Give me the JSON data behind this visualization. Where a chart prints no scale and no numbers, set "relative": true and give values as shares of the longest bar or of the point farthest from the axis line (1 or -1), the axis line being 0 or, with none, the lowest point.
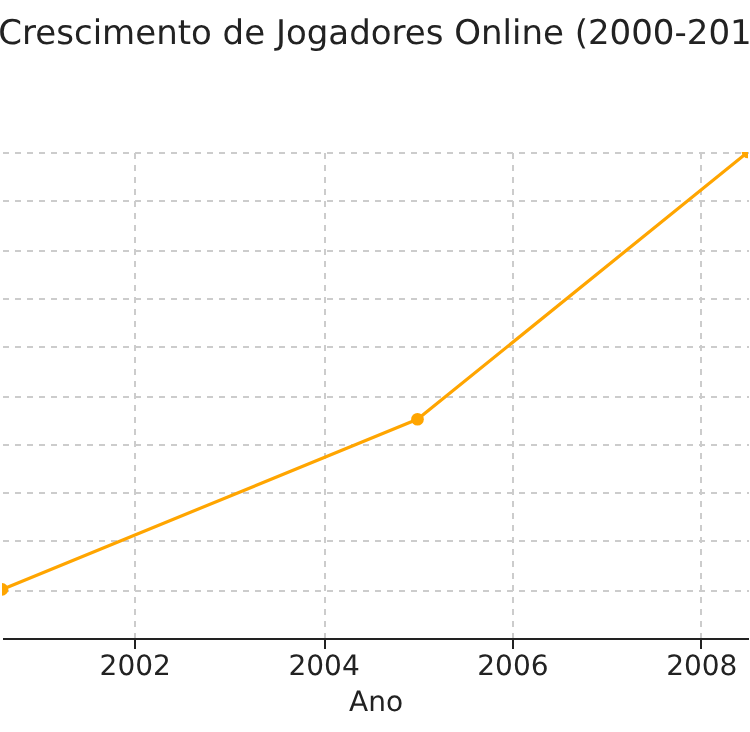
{
  "chart_data": {
    "type": "line",
    "title": "Crescimento de Jogadores Online (2000-201",
    "xlabel": "Ano",
    "relative": true,
    "x": [
      2000.6,
      2005,
      2008.5
    ],
    "series": [
      {
        "color": "#ffa500",
        "values": [
          0.1,
          0.45,
          1.0
        ]
      }
    ],
    "xlim": [
      2000.6,
      2008.5
    ],
    "xticks": [
      2002,
      2004,
      2006,
      2008
    ],
    "grid": true,
    "marker": "circle",
    "line_style": "solid"
  }
}
